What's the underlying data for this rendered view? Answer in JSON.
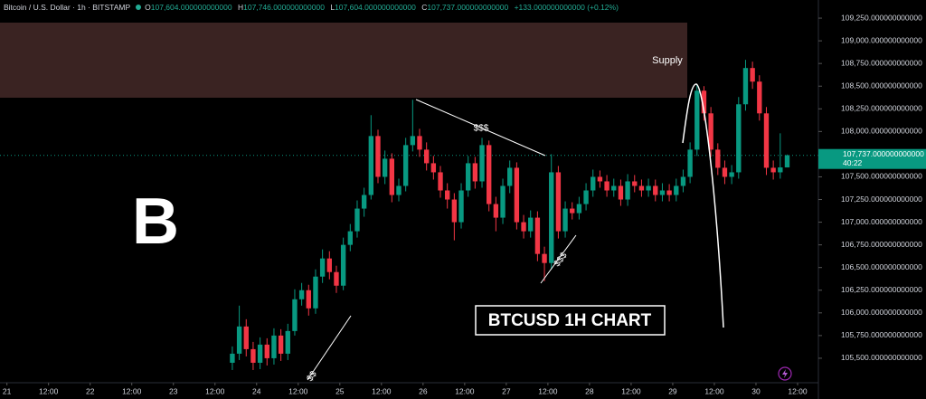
{
  "chart_data": {
    "type": "candlestick",
    "header": {
      "symbol": "Bitcoin / U.S. Dollar · 1h · BITSTAMP",
      "o_label": "O",
      "o": "107,604.000000000000",
      "h_label": "H",
      "h": "107,746.000000000000",
      "l_label": "L",
      "l": "107,604.000000000000",
      "c_label": "C",
      "c": "107,737.000000000000",
      "change": "+133.000000000000 (+0.12%)"
    },
    "last_price_label": "107,737.000000000000",
    "countdown": "40:22",
    "annotations": {
      "logo": "B",
      "supply": "Supply",
      "title_box": "BTCUSD 1H CHART",
      "liquidity_top": "$$$",
      "liquidity_mid": "$$$",
      "liquidity_low": "$$"
    },
    "up_color": "#089981",
    "down_color": "#f23645",
    "x": [
      65,
      67,
      69,
      71,
      73,
      75,
      77,
      79,
      81,
      83,
      85,
      87,
      89,
      91,
      93,
      95,
      97,
      99,
      101,
      103,
      105,
      107,
      109,
      111,
      113,
      115,
      117,
      119,
      121,
      123,
      125,
      127,
      129,
      131,
      133,
      135,
      137,
      139,
      141,
      143,
      145,
      147,
      149,
      151,
      153,
      155,
      157,
      159,
      161,
      163,
      165,
      167,
      169,
      171,
      173,
      175,
      177,
      179,
      181,
      183,
      185,
      187,
      189,
      191,
      193,
      195,
      197,
      199,
      201,
      203,
      205,
      207,
      209,
      211,
      213,
      215,
      217,
      219,
      221,
      223,
      225
    ],
    "open": [
      105450,
      105550,
      105850,
      105600,
      105450,
      105650,
      105500,
      105750,
      105550,
      105800,
      106150,
      106250,
      106050,
      106400,
      106600,
      106450,
      106300,
      106750,
      106900,
      107150,
      107300,
      107950,
      107500,
      107700,
      107300,
      107400,
      107850,
      107950,
      107800,
      107650,
      107550,
      107350,
      107250,
      107000,
      107350,
      107650,
      107450,
      107850,
      107200,
      107050,
      107400,
      107600,
      107000,
      106900,
      107050,
      106650,
      106550,
      107550,
      106900,
      107150,
      107100,
      107200,
      107350,
      107500,
      107450,
      107350,
      107400,
      107250,
      107450,
      107400,
      107350,
      107400,
      107300,
      107350,
      107300,
      107400,
      107500,
      107800,
      108450,
      108200,
      107800,
      107600,
      107500,
      107550,
      108300,
      108700,
      108550,
      108200,
      107600,
      107550,
      107604
    ],
    "high": [
      105630,
      106080,
      105930,
      105680,
      105730,
      105720,
      105830,
      105820,
      105880,
      106260,
      106330,
      106310,
      106480,
      106700,
      106680,
      106520,
      106830,
      106980,
      107240,
      107380,
      108180,
      108020,
      107790,
      107760,
      107480,
      107930,
      108350,
      108030,
      107880,
      107730,
      107620,
      107430,
      107320,
      107430,
      107730,
      107720,
      107930,
      107900,
      107280,
      107480,
      107680,
      107660,
      107080,
      107130,
      107120,
      106730,
      107750,
      107620,
      107230,
      107220,
      107280,
      107430,
      107580,
      107570,
      107520,
      107480,
      107470,
      107530,
      107520,
      107470,
      107480,
      107470,
      107430,
      107420,
      107480,
      107580,
      107880,
      108520,
      108500,
      108270,
      107870,
      107680,
      107630,
      108380,
      108790,
      108770,
      108620,
      108270,
      107680,
      107980,
      107746
    ],
    "low": [
      105370,
      105480,
      105520,
      105370,
      105380,
      105420,
      105430,
      105470,
      105480,
      105750,
      106080,
      105970,
      105990,
      106330,
      106370,
      106220,
      106250,
      106680,
      106830,
      107060,
      107250,
      107430,
      107420,
      107220,
      107230,
      107340,
      107780,
      107720,
      107570,
      107470,
      107270,
      107150,
      106800,
      106930,
      107280,
      107370,
      107380,
      107120,
      106900,
      106980,
      107320,
      106920,
      106820,
      106830,
      106570,
      106350,
      106480,
      106820,
      106830,
      107030,
      107030,
      107130,
      107280,
      107380,
      107280,
      107280,
      107180,
      107180,
      107330,
      107280,
      107280,
      107230,
      107230,
      107230,
      107230,
      107330,
      107430,
      107730,
      108120,
      107720,
      107520,
      107420,
      107420,
      107480,
      108230,
      108470,
      108120,
      107520,
      107470,
      107480,
      107604
    ],
    "close": [
      105550,
      105850,
      105600,
      105450,
      105650,
      105500,
      105750,
      105550,
      105800,
      106150,
      106250,
      106050,
      106400,
      106600,
      106450,
      106300,
      106750,
      106900,
      107150,
      107300,
      107950,
      107500,
      107700,
      107300,
      107400,
      107850,
      107950,
      107800,
      107650,
      107550,
      107350,
      107250,
      107000,
      107350,
      107650,
      107450,
      107850,
      107200,
      107050,
      107400,
      107600,
      107000,
      106900,
      107050,
      106650,
      106550,
      107550,
      106900,
      107150,
      107100,
      107200,
      107350,
      107500,
      107450,
      107350,
      107400,
      107250,
      107450,
      107400,
      107350,
      107400,
      107300,
      107350,
      107300,
      107400,
      107500,
      107800,
      108450,
      108200,
      107800,
      107600,
      107500,
      107550,
      108300,
      108700,
      108550,
      108200,
      107600,
      107550,
      107604,
      107737
    ],
    "xlim": [
      -2,
      234
    ],
    "xticks": [
      {
        "value": 0,
        "label": "21"
      },
      {
        "value": 12,
        "label": "12:00"
      },
      {
        "value": 24,
        "label": "22"
      },
      {
        "value": 36,
        "label": "12:00"
      },
      {
        "value": 48,
        "label": "23"
      },
      {
        "value": 60,
        "label": "12:00"
      },
      {
        "value": 72,
        "label": "24"
      },
      {
        "value": 84,
        "label": "12:00"
      },
      {
        "value": 96,
        "label": "25"
      },
      {
        "value": 108,
        "label": "12:00"
      },
      {
        "value": 120,
        "label": "26"
      },
      {
        "value": 132,
        "label": "12:00"
      },
      {
        "value": 144,
        "label": "27"
      },
      {
        "value": 156,
        "label": "12:00"
      },
      {
        "value": 168,
        "label": "28"
      },
      {
        "value": 180,
        "label": "12:00"
      },
      {
        "value": 192,
        "label": "29"
      },
      {
        "value": 204,
        "label": "12:00"
      },
      {
        "value": 216,
        "label": "30"
      },
      {
        "value": 228,
        "label": "12:00"
      }
    ],
    "ylim": [
      105230,
      109450
    ],
    "yticks": [
      {
        "value": 105500,
        "label": "105,500.000000000000"
      },
      {
        "value": 105750,
        "label": "105,750.000000000000"
      },
      {
        "value": 106000,
        "label": "106,000.000000000000"
      },
      {
        "value": 106250,
        "label": "106,250.000000000000"
      },
      {
        "value": 106500,
        "label": "106,500.000000000000"
      },
      {
        "value": 106750,
        "label": "106,750.000000000000"
      },
      {
        "value": 107000,
        "label": "107,000.000000000000"
      },
      {
        "value": 107250,
        "label": "107,250.000000000000"
      },
      {
        "value": 107500,
        "label": "107,500.000000000000"
      },
      {
        "value": 107750,
        "label": "107,750.000000000000"
      },
      {
        "value": 108000,
        "label": "108,000.000000000000"
      },
      {
        "value": 108250,
        "label": "108,250.000000000000"
      },
      {
        "value": 108500,
        "label": "108,500.000000000000"
      },
      {
        "value": 108750,
        "label": "108,750.000000000000"
      },
      {
        "value": 109000,
        "label": "109,000.000000000000"
      },
      {
        "value": 109250,
        "label": "109,250.000000000000"
      }
    ],
    "grid": false
  }
}
